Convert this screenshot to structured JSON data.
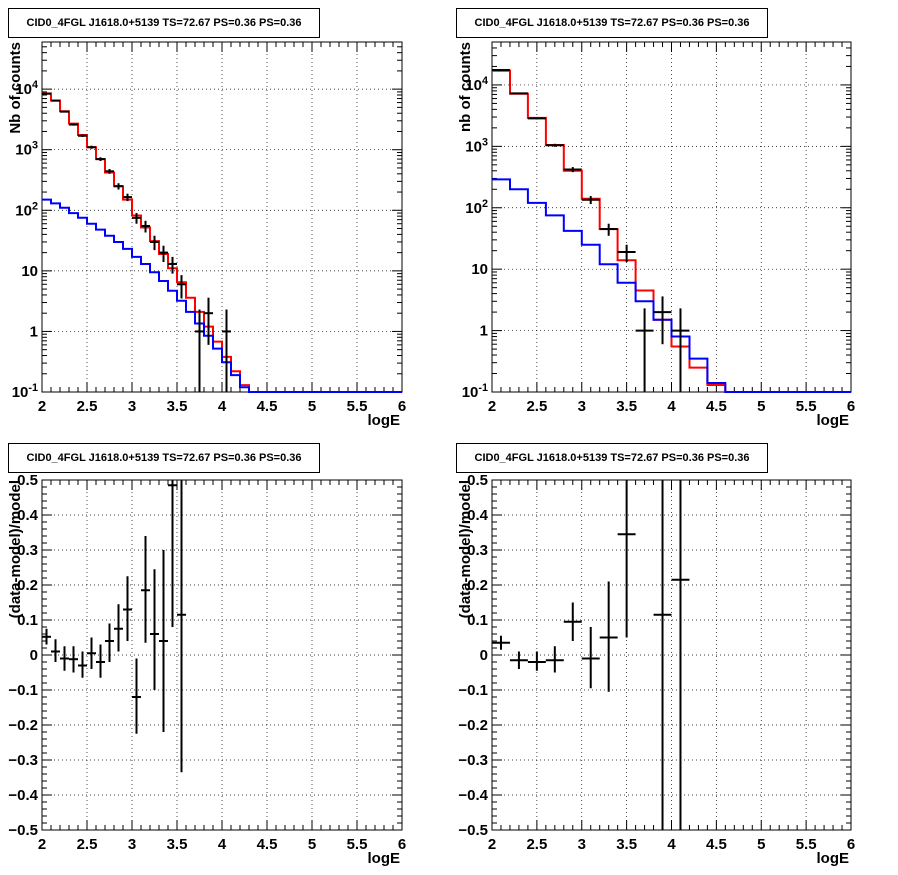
{
  "chart_data": [
    {
      "type": "step-histogram",
      "title": "CID0_4FGL J1618.0+5139 TS=72.67 PS=0.36 PS=0.36",
      "xlabel": "logE",
      "ylabel": "Nb of counts",
      "yscale": "log",
      "xlim": [
        2,
        6
      ],
      "ylim": [
        0.1,
        60000
      ],
      "grid": true,
      "x_ticks": [
        "2",
        "2.5",
        "3",
        "3.5",
        "4",
        "4.5",
        "5",
        "5.5",
        "6"
      ],
      "y_ticks": [
        "10^{-1}",
        "1",
        "10",
        "10^{2}",
        "10^{3}",
        "10^{4}"
      ],
      "bin_edges": [
        2.0,
        2.1,
        2.2,
        2.3,
        2.4,
        2.5,
        2.6,
        2.7,
        2.8,
        2.9,
        3.0,
        3.1,
        3.2,
        3.3,
        3.4,
        3.5,
        3.6,
        3.7,
        3.8,
        3.9,
        4.0,
        4.1,
        4.2,
        4.3,
        4.4,
        4.5,
        4.6,
        4.7,
        4.8,
        4.9,
        5.0,
        5.1,
        5.2,
        5.3,
        5.4,
        5.5,
        5.6,
        5.7,
        5.8,
        5.9,
        6.0
      ],
      "series": [
        {
          "color": "#ff0000",
          "values": [
            8500,
            6500,
            4300,
            2700,
            1750,
            1100,
            700,
            420,
            250,
            150,
            82,
            52,
            31,
            19,
            11,
            6.5,
            3.6,
            2.1,
            1.2,
            0.68,
            0.38,
            0.22,
            0.13,
            0.1,
            0.1,
            0.1,
            0.1,
            0.1,
            0.1,
            0.1,
            0.1,
            0.1,
            0.1,
            0.1,
            0.1,
            0.1,
            0.1,
            0.1,
            0.1,
            0.1
          ]
        },
        {
          "color": "#0000ff",
          "values": [
            150,
            130,
            110,
            90,
            75,
            60,
            48,
            38,
            30,
            23,
            17,
            13,
            9.5,
            6.8,
            4.7,
            3.2,
            2.1,
            1.35,
            0.85,
            0.52,
            0.31,
            0.19,
            0.12,
            0.1,
            0.1,
            0.1,
            0.1,
            0.1,
            0.1,
            0.1,
            0.1,
            0.1,
            0.1,
            0.1,
            0.1,
            0.1,
            0.1,
            0.1,
            0.1,
            0.1
          ]
        }
      ],
      "data_points": [
        {
          "x": 2.05,
          "y": 8400,
          "ylo": 8230,
          "yhi": 8570
        },
        {
          "x": 2.15,
          "y": 6450,
          "ylo": 6300,
          "yhi": 6600
        },
        {
          "x": 2.25,
          "y": 4250,
          "ylo": 4120,
          "yhi": 4380
        },
        {
          "x": 2.35,
          "y": 2600,
          "ylo": 2500,
          "yhi": 2700
        },
        {
          "x": 2.45,
          "y": 1700,
          "ylo": 1620,
          "yhi": 1780
        },
        {
          "x": 2.55,
          "y": 1100,
          "ylo": 1035,
          "yhi": 1165
        },
        {
          "x": 2.65,
          "y": 700,
          "ylo": 650,
          "yhi": 750
        },
        {
          "x": 2.75,
          "y": 440,
          "ylo": 400,
          "yhi": 480
        },
        {
          "x": 2.85,
          "y": 250,
          "ylo": 220,
          "yhi": 280
        },
        {
          "x": 2.95,
          "y": 165,
          "ylo": 142,
          "yhi": 188
        },
        {
          "x": 3.05,
          "y": 75,
          "ylo": 60,
          "yhi": 90
        },
        {
          "x": 3.15,
          "y": 55,
          "ylo": 43,
          "yhi": 67
        },
        {
          "x": 3.25,
          "y": 30,
          "ylo": 22,
          "yhi": 38
        },
        {
          "x": 3.35,
          "y": 20,
          "ylo": 14,
          "yhi": 26
        },
        {
          "x": 3.45,
          "y": 13,
          "ylo": 9,
          "yhi": 17
        },
        {
          "x": 3.55,
          "y": 6,
          "ylo": 3.5,
          "yhi": 8.5
        },
        {
          "x": 3.75,
          "y": 1,
          "ylo": 0.1,
          "yhi": 2.3
        },
        {
          "x": 3.85,
          "y": 2,
          "ylo": 0.6,
          "yhi": 3.6
        },
        {
          "x": 4.05,
          "y": 1,
          "ylo": 0.1,
          "yhi": 2.3
        }
      ]
    },
    {
      "type": "step-histogram",
      "title": "CID0_4FGL J1618.0+5139 TS=72.67 PS=0.36 PS=0.36",
      "xlabel": "logE",
      "ylabel": "nb of counts",
      "yscale": "log",
      "xlim": [
        2,
        6
      ],
      "ylim": [
        0.1,
        50000
      ],
      "grid": true,
      "x_ticks": [
        "2",
        "2.5",
        "3",
        "3.5",
        "4",
        "4.5",
        "5",
        "5.5",
        "6"
      ],
      "y_ticks": [
        "10^{-1}",
        "1",
        "10",
        "10^{2}",
        "10^{3}",
        "10^{4}"
      ],
      "bin_edges": [
        2.0,
        2.2,
        2.4,
        2.6,
        2.8,
        3.0,
        3.2,
        3.4,
        3.6,
        3.8,
        4.0,
        4.2,
        4.4,
        4.6,
        4.8,
        5.0,
        5.2,
        5.4,
        5.6,
        5.8,
        6.0
      ],
      "series": [
        {
          "color": "#ff0000",
          "values": [
            17000,
            7200,
            2900,
            1050,
            400,
            140,
            45,
            14,
            4.5,
            1.5,
            0.55,
            0.25,
            0.13,
            0.1,
            0.1,
            0.1,
            0.1,
            0.1,
            0.1,
            0.1
          ]
        },
        {
          "color": "#0000ff",
          "values": [
            290,
            200,
            120,
            75,
            42,
            25,
            12,
            6,
            3,
            1.5,
            0.8,
            0.35,
            0.14,
            0.1,
            0.1,
            0.1,
            0.1,
            0.1,
            0.1,
            0.1
          ]
        }
      ],
      "data_points": [
        {
          "x": 2.1,
          "y": 17500,
          "ylo": 17200,
          "yhi": 17800
        },
        {
          "x": 2.3,
          "y": 7300,
          "ylo": 7100,
          "yhi": 7500
        },
        {
          "x": 2.5,
          "y": 2850,
          "ylo": 2750,
          "yhi": 2950
        },
        {
          "x": 2.7,
          "y": 1040,
          "ylo": 980,
          "yhi": 1100
        },
        {
          "x": 2.9,
          "y": 420,
          "ylo": 380,
          "yhi": 460
        },
        {
          "x": 3.1,
          "y": 135,
          "ylo": 115,
          "yhi": 155
        },
        {
          "x": 3.3,
          "y": 45,
          "ylo": 35,
          "yhi": 55
        },
        {
          "x": 3.5,
          "y": 19,
          "ylo": 13,
          "yhi": 25
        },
        {
          "x": 3.7,
          "y": 1,
          "ylo": 0.1,
          "yhi": 2.3
        },
        {
          "x": 3.9,
          "y": 2,
          "ylo": 0.6,
          "yhi": 3.6
        },
        {
          "x": 4.1,
          "y": 1,
          "ylo": 0.1,
          "yhi": 2.3
        }
      ]
    },
    {
      "type": "scatter-errorbars",
      "title": "CID0_4FGL J1618.0+5139 TS=72.67 PS=0.36 PS=0.36",
      "xlabel": "logE",
      "ylabel": "(data-model)/model",
      "xlim": [
        2,
        6
      ],
      "ylim": [
        -0.5,
        0.5
      ],
      "grid": true,
      "x_ticks": [
        "2",
        "2.5",
        "3",
        "3.5",
        "4",
        "4.5",
        "5",
        "5.5",
        "6"
      ],
      "y_ticks": [
        "−0.5",
        "−0.4",
        "−0.3",
        "−0.2",
        "−0.1",
        "0",
        "0.1",
        "0.2",
        "0.3",
        "0.4",
        "0.5"
      ],
      "data_points": [
        {
          "x": 2.05,
          "y": 0.052,
          "ylo": 0.03,
          "yhi": 0.075
        },
        {
          "x": 2.15,
          "y": 0.01,
          "ylo": -0.02,
          "yhi": 0.045
        },
        {
          "x": 2.25,
          "y": -0.01,
          "ylo": -0.045,
          "yhi": 0.025
        },
        {
          "x": 2.35,
          "y": -0.012,
          "ylo": -0.05,
          "yhi": 0.025
        },
        {
          "x": 2.45,
          "y": -0.03,
          "ylo": -0.065,
          "yhi": 0.01
        },
        {
          "x": 2.55,
          "y": 0.005,
          "ylo": -0.04,
          "yhi": 0.05
        },
        {
          "x": 2.65,
          "y": -0.02,
          "ylo": -0.065,
          "yhi": 0.03
        },
        {
          "x": 2.75,
          "y": 0.04,
          "ylo": -0.02,
          "yhi": 0.09
        },
        {
          "x": 2.85,
          "y": 0.075,
          "ylo": 0.01,
          "yhi": 0.145
        },
        {
          "x": 2.95,
          "y": 0.13,
          "ylo": 0.04,
          "yhi": 0.225
        },
        {
          "x": 3.05,
          "y": -0.12,
          "ylo": -0.225,
          "yhi": -0.01
        },
        {
          "x": 3.15,
          "y": 0.185,
          "ylo": 0.035,
          "yhi": 0.34
        },
        {
          "x": 3.25,
          "y": 0.06,
          "ylo": -0.1,
          "yhi": 0.245
        },
        {
          "x": 3.35,
          "y": 0.04,
          "ylo": -0.22,
          "yhi": 0.3
        },
        {
          "x": 3.45,
          "y": 0.485,
          "ylo": 0.08,
          "yhi": 0.5
        },
        {
          "x": 3.55,
          "y": 0.115,
          "ylo": -0.335,
          "yhi": 0.5
        }
      ]
    },
    {
      "type": "scatter-errorbars",
      "title": "CID0_4FGL J1618.0+5139 TS=72.67 PS=0.36 PS=0.36",
      "xlabel": "logE",
      "ylabel": "(data-model)/model",
      "xlim": [
        2,
        6
      ],
      "ylim": [
        -0.5,
        0.5
      ],
      "grid": true,
      "x_ticks": [
        "2",
        "2.5",
        "3",
        "3.5",
        "4",
        "4.5",
        "5",
        "5.5",
        "6"
      ],
      "y_ticks": [
        "−0.5",
        "−0.4",
        "−0.3",
        "−0.2",
        "−0.1",
        "0",
        "0.1",
        "0.2",
        "0.3",
        "0.4",
        "0.5"
      ],
      "data_points": [
        {
          "x": 2.1,
          "y": 0.035,
          "ylo": 0.015,
          "yhi": 0.055
        },
        {
          "x": 2.3,
          "y": -0.015,
          "ylo": -0.04,
          "yhi": 0.01
        },
        {
          "x": 2.5,
          "y": -0.02,
          "ylo": -0.045,
          "yhi": 0.01
        },
        {
          "x": 2.7,
          "y": -0.015,
          "ylo": -0.05,
          "yhi": 0.025
        },
        {
          "x": 2.9,
          "y": 0.095,
          "ylo": 0.04,
          "yhi": 0.15
        },
        {
          "x": 3.1,
          "y": -0.01,
          "ylo": -0.095,
          "yhi": 0.08
        },
        {
          "x": 3.3,
          "y": 0.05,
          "ylo": -0.105,
          "yhi": 0.21
        },
        {
          "x": 3.5,
          "y": 0.345,
          "ylo": 0.05,
          "yhi": 0.5
        },
        {
          "x": 3.9,
          "y": 0.115,
          "ylo": -0.5,
          "yhi": 0.5
        },
        {
          "x": 4.1,
          "y": 0.215,
          "ylo": -0.5,
          "yhi": 0.5
        }
      ]
    }
  ]
}
